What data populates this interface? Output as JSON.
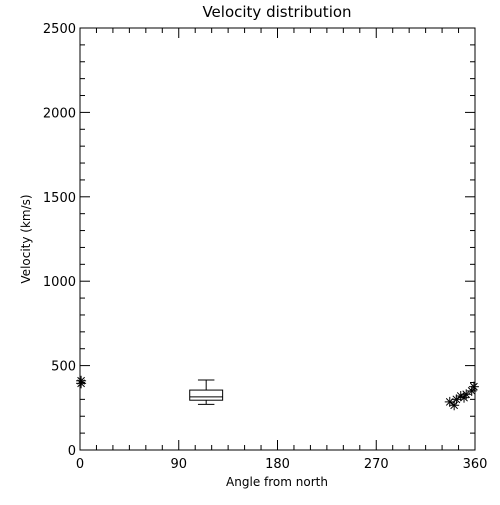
{
  "chart_data": {
    "type": "scatter",
    "title": "Velocity distribution",
    "xlabel": "Angle from north",
    "ylabel": "Velocity (km/s)",
    "xlim": [
      0,
      360
    ],
    "ylim": [
      0,
      2500
    ],
    "xticks": [
      0,
      90,
      180,
      270,
      360
    ],
    "yticks": [
      0,
      500,
      1000,
      1500,
      2000,
      2500
    ],
    "grid": false,
    "points": [
      {
        "x": 1,
        "y": 410
      },
      {
        "x": 1,
        "y": 395
      },
      {
        "x": 337,
        "y": 285
      },
      {
        "x": 341,
        "y": 265
      },
      {
        "x": 343,
        "y": 300
      },
      {
        "x": 347,
        "y": 320
      },
      {
        "x": 350,
        "y": 310
      },
      {
        "x": 352,
        "y": 330
      },
      {
        "x": 357,
        "y": 350
      },
      {
        "x": 359,
        "y": 375
      }
    ],
    "boxplot": {
      "x": 115,
      "width": 30,
      "whisker_low": 270,
      "q1": 295,
      "median": 315,
      "q3": 355,
      "whisker_high": 415
    }
  }
}
